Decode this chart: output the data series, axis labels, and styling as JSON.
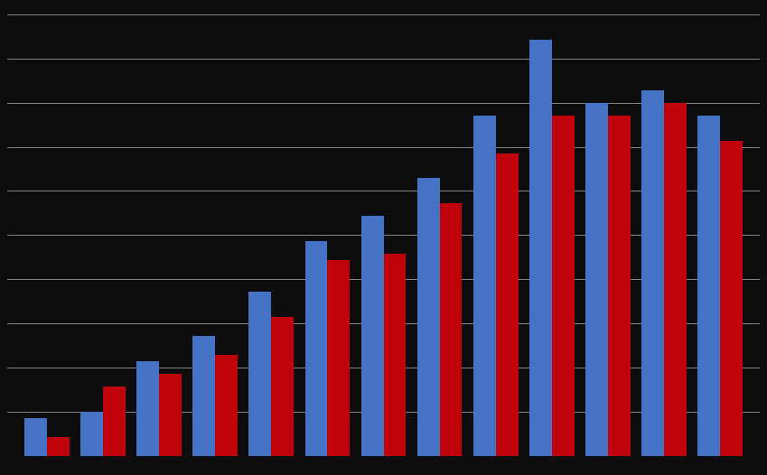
{
  "blue_values": [
    3,
    3.5,
    7.5,
    9.5,
    13,
    17,
    19,
    22,
    27,
    33,
    28,
    29,
    27
  ],
  "red_values": [
    1.5,
    5.5,
    6.5,
    8,
    11,
    15.5,
    16,
    20,
    24,
    27,
    27,
    28,
    25
  ],
  "blue_color": "#4472C4",
  "red_color": "#C0000B",
  "background_color": "#0d0d0d",
  "grid_color": "#888888",
  "ylim": [
    0,
    35
  ],
  "n_gridlines": 10,
  "bar_width": 0.4
}
